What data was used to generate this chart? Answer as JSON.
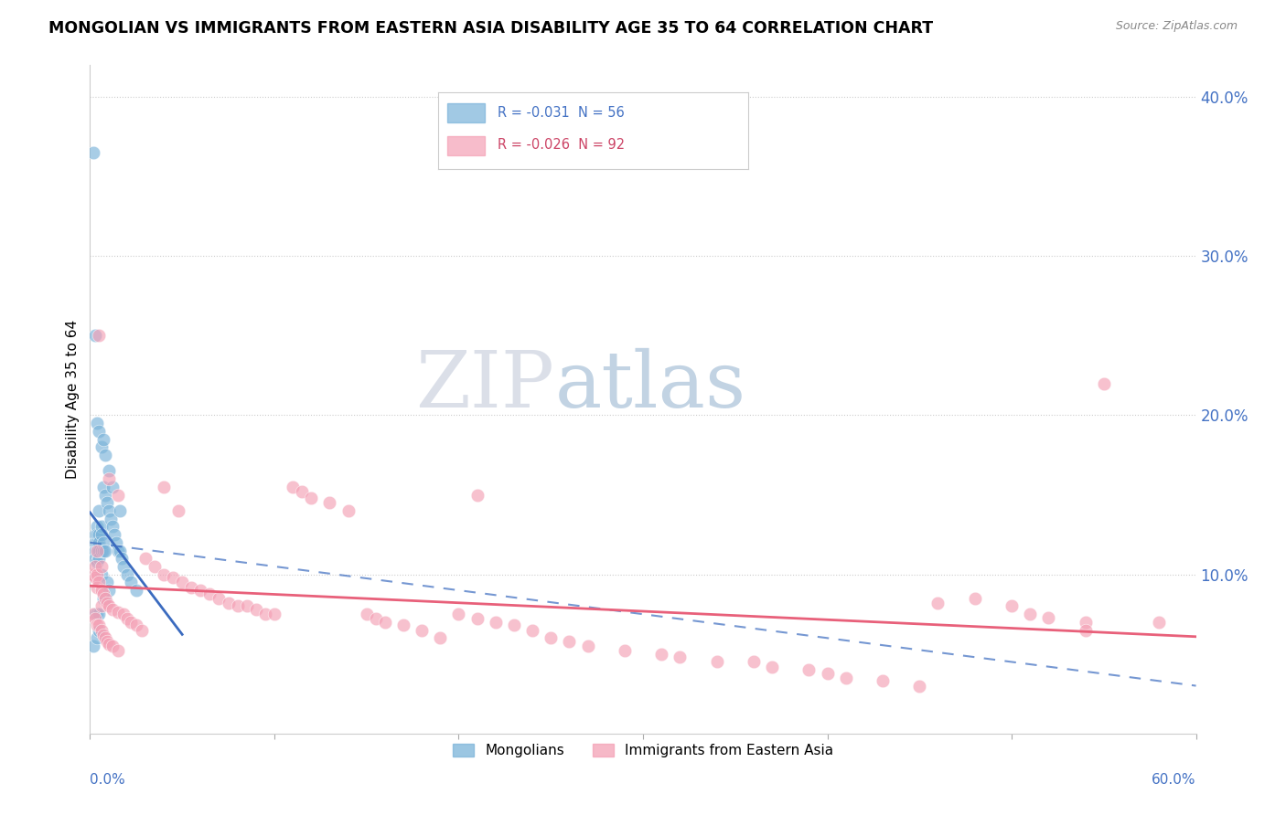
{
  "title": "MONGOLIAN VS IMMIGRANTS FROM EASTERN ASIA DISABILITY AGE 35 TO 64 CORRELATION CHART",
  "source": "Source: ZipAtlas.com",
  "ylabel": "Disability Age 35 to 64",
  "xlim": [
    0.0,
    0.6
  ],
  "ylim": [
    0.0,
    0.42
  ],
  "ytick_vals": [
    0.1,
    0.2,
    0.3,
    0.4
  ],
  "ytick_labels": [
    "10.0%",
    "20.0%",
    "30.0%",
    "40.0%"
  ],
  "mongolian_color": "#7ab3d9",
  "eastern_asia_color": "#f4a0b5",
  "mongolian_trend_color": "#3b6bbf",
  "eastern_asia_trend_color": "#e8607a",
  "eastern_asia_dash_color": "#8ab0d8",
  "background_color": "#ffffff",
  "grid_color": "#cccccc",
  "watermark_zip_color": "#d8dde8",
  "watermark_atlas_color": "#c8d8e8",
  "legend_r1": "R = -0.031  N = 56",
  "legend_r2": "R = -0.026  N = 92",
  "legend_label1": "Mongolians",
  "legend_label2": "Immigrants from Eastern Asia",
  "mongo_x": [
    0.002,
    0.002,
    0.003,
    0.003,
    0.003,
    0.003,
    0.003,
    0.004,
    0.004,
    0.004,
    0.004,
    0.004,
    0.004,
    0.004,
    0.005,
    0.005,
    0.005,
    0.005,
    0.005,
    0.005,
    0.005,
    0.006,
    0.006,
    0.006,
    0.006,
    0.007,
    0.007,
    0.007,
    0.007,
    0.008,
    0.008,
    0.008,
    0.009,
    0.009,
    0.01,
    0.01,
    0.011,
    0.012,
    0.013,
    0.014,
    0.015,
    0.016,
    0.017,
    0.018,
    0.02,
    0.022,
    0.025,
    0.003,
    0.004,
    0.005,
    0.006,
    0.007,
    0.008,
    0.01,
    0.012,
    0.016
  ],
  "mongo_y": [
    0.365,
    0.055,
    0.125,
    0.12,
    0.115,
    0.11,
    0.075,
    0.13,
    0.125,
    0.12,
    0.115,
    0.108,
    0.075,
    0.06,
    0.14,
    0.125,
    0.12,
    0.115,
    0.11,
    0.075,
    0.065,
    0.13,
    0.125,
    0.115,
    0.1,
    0.155,
    0.12,
    0.115,
    0.085,
    0.15,
    0.115,
    0.085,
    0.145,
    0.095,
    0.14,
    0.09,
    0.135,
    0.13,
    0.125,
    0.12,
    0.115,
    0.115,
    0.11,
    0.105,
    0.1,
    0.095,
    0.09,
    0.25,
    0.195,
    0.19,
    0.18,
    0.185,
    0.175,
    0.165,
    0.155,
    0.14
  ],
  "ea_x": [
    0.002,
    0.002,
    0.003,
    0.003,
    0.003,
    0.004,
    0.004,
    0.004,
    0.005,
    0.005,
    0.005,
    0.006,
    0.006,
    0.006,
    0.007,
    0.007,
    0.008,
    0.008,
    0.009,
    0.009,
    0.01,
    0.01,
    0.012,
    0.012,
    0.015,
    0.015,
    0.018,
    0.02,
    0.022,
    0.025,
    0.028,
    0.03,
    0.035,
    0.04,
    0.045,
    0.048,
    0.05,
    0.055,
    0.06,
    0.065,
    0.07,
    0.075,
    0.08,
    0.085,
    0.09,
    0.095,
    0.1,
    0.11,
    0.115,
    0.12,
    0.13,
    0.14,
    0.15,
    0.155,
    0.16,
    0.17,
    0.18,
    0.19,
    0.2,
    0.21,
    0.22,
    0.23,
    0.24,
    0.25,
    0.26,
    0.27,
    0.29,
    0.31,
    0.32,
    0.34,
    0.36,
    0.37,
    0.39,
    0.4,
    0.41,
    0.43,
    0.45,
    0.46,
    0.48,
    0.5,
    0.51,
    0.52,
    0.54,
    0.004,
    0.006,
    0.01,
    0.015,
    0.04,
    0.21,
    0.55,
    0.58,
    0.54
  ],
  "ea_y": [
    0.1,
    0.075,
    0.105,
    0.098,
    0.072,
    0.1,
    0.092,
    0.068,
    0.25,
    0.095,
    0.068,
    0.09,
    0.08,
    0.065,
    0.088,
    0.062,
    0.085,
    0.06,
    0.082,
    0.058,
    0.08,
    0.056,
    0.078,
    0.055,
    0.076,
    0.052,
    0.075,
    0.072,
    0.07,
    0.068,
    0.065,
    0.11,
    0.105,
    0.1,
    0.098,
    0.14,
    0.095,
    0.092,
    0.09,
    0.088,
    0.085,
    0.082,
    0.08,
    0.08,
    0.078,
    0.075,
    0.075,
    0.155,
    0.152,
    0.148,
    0.145,
    0.14,
    0.075,
    0.072,
    0.07,
    0.068,
    0.065,
    0.06,
    0.075,
    0.072,
    0.07,
    0.068,
    0.065,
    0.06,
    0.058,
    0.055,
    0.052,
    0.05,
    0.048,
    0.045,
    0.045,
    0.042,
    0.04,
    0.038,
    0.035,
    0.033,
    0.03,
    0.082,
    0.085,
    0.08,
    0.075,
    0.073,
    0.07,
    0.115,
    0.105,
    0.16,
    0.15,
    0.155,
    0.15,
    0.22,
    0.07,
    0.065
  ]
}
